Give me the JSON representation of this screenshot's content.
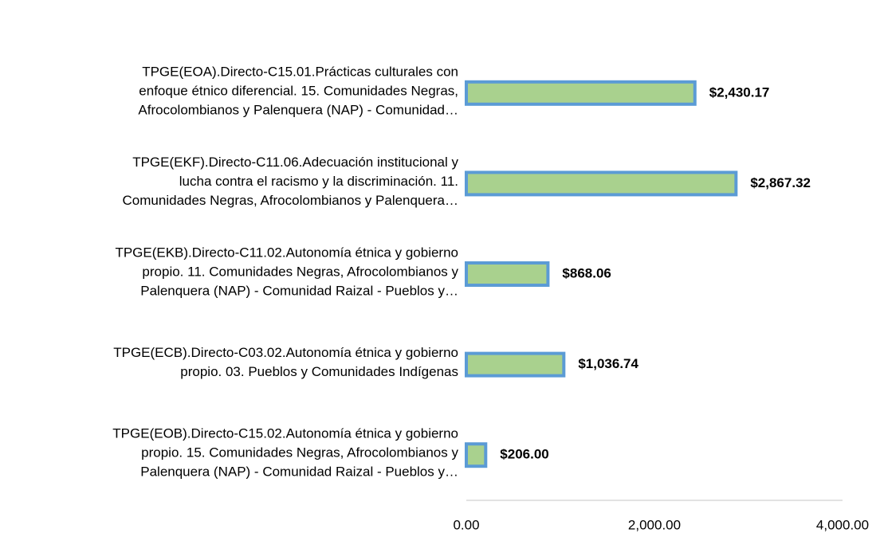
{
  "chart_data": {
    "type": "barh",
    "categories": [
      [
        "TPGE(EOA).Directo-C15.01.Prácticas culturales con",
        "enfoque étnico diferencial. 15. Comunidades Negras,",
        "Afrocolombianos y Palenquera (NAP) - Comunidad…"
      ],
      [
        "TPGE(EKF).Directo-C11.06.Adecuación institucional y",
        "lucha contra el racismo y la discriminación. 11.",
        "Comunidades Negras, Afrocolombianos y Palenquera…"
      ],
      [
        "TPGE(EKB).Directo-C11.02.Autonomía étnica y gobierno",
        "propio. 11. Comunidades Negras, Afrocolombianos y",
        "Palenquera (NAP) - Comunidad Raizal - Pueblos y…"
      ],
      [
        "TPGE(ECB).Directo-C03.02.Autonomía étnica y gobierno",
        "propio. 03. Pueblos y Comunidades Indígenas"
      ],
      [
        "TPGE(EOB).Directo-C15.02.Autonomía étnica y gobierno",
        "propio. 15. Comunidades Negras, Afrocolombianos y",
        "Palenquera (NAP) - Comunidad Raizal - Pueblos y…"
      ]
    ],
    "values": [
      2430.17,
      2867.32,
      868.06,
      1036.74,
      206.0
    ],
    "value_labels": [
      "$2,430.17",
      "$2,867.32",
      "$868.06",
      "$1,036.74",
      "$206.00"
    ],
    "color": "#a9d18e",
    "edge_color": "#5b9bd5",
    "xlim": [
      0,
      4000
    ],
    "xticks": [
      {
        "value": 0,
        "label": "0.00"
      },
      {
        "value": 2000,
        "label": "2,000.00"
      },
      {
        "value": 4000,
        "label": "4,000.00"
      }
    ],
    "grid": false
  }
}
